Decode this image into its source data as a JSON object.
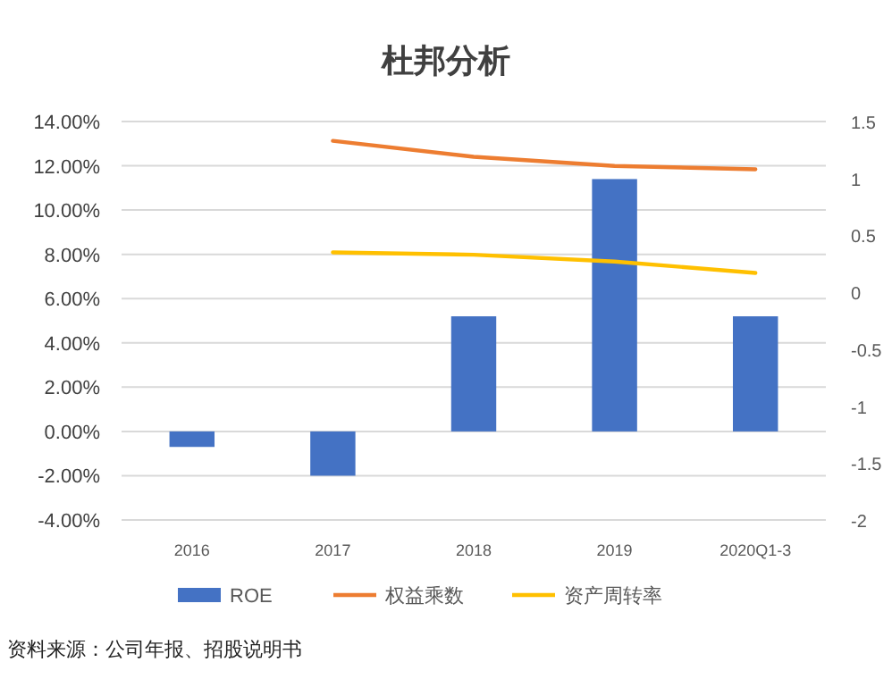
{
  "chart_data": {
    "type": "bar",
    "title": "杜邦分析",
    "categories": [
      "2016",
      "2017",
      "2018",
      "2019",
      "2020Q1-3"
    ],
    "series": [
      {
        "name": "ROE",
        "color": "#4472c4",
        "values": [
          -0.7,
          -2.0,
          5.2,
          11.4,
          5.2
        ]
      },
      {
        "name": "权益乘数",
        "type": "line",
        "axis": "y2",
        "color": "#ed7d31",
        "values": [
          null,
          1.33,
          1.19,
          1.11,
          1.08
        ]
      },
      {
        "name": "资产周转率",
        "type": "line",
        "axis": "y2",
        "color": "#ffc000",
        "values": [
          null,
          0.35,
          0.33,
          0.27,
          0.17
        ]
      }
    ],
    "ylim": [
      -4,
      14
    ],
    "yticks": [
      {
        "value": -4,
        "label": "-4.00%"
      },
      {
        "value": -2,
        "label": "-2.00%"
      },
      {
        "value": 0,
        "label": "0.00%"
      },
      {
        "value": 2,
        "label": "2.00%"
      },
      {
        "value": 4,
        "label": "4.00%"
      },
      {
        "value": 6,
        "label": "6.00%"
      },
      {
        "value": 8,
        "label": "8.00%"
      },
      {
        "value": 10,
        "label": "10.00%"
      },
      {
        "value": 12,
        "label": "12.00%"
      },
      {
        "value": 14,
        "label": "14.00%"
      }
    ],
    "y2lim": [
      -2,
      1.5
    ],
    "y2ticks": [
      -2,
      -1.5,
      -1,
      -0.5,
      0,
      0.5,
      1,
      1.5
    ],
    "grid": "y",
    "legend": "bottom",
    "annotations": [
      "资料来源：公司年报、招股说明书"
    ]
  }
}
